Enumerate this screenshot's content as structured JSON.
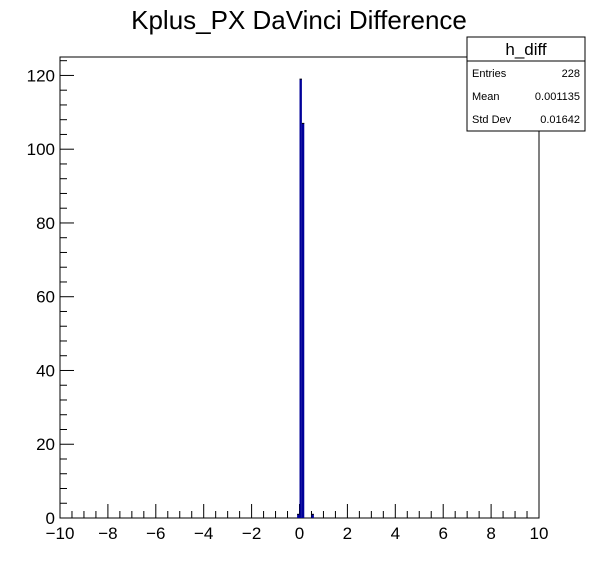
{
  "chart_data": {
    "type": "bar",
    "title": "Kplus_PX DaVinci Difference",
    "xlabel": "",
    "ylabel": "",
    "xlim": [
      -10,
      10
    ],
    "ylim": [
      0,
      125
    ],
    "x_tick_labels": [
      "−10",
      "−8",
      "−6",
      "−4",
      "−2",
      "0",
      "2",
      "4",
      "6",
      "8",
      "10"
    ],
    "x_tick_values": [
      -10,
      -8,
      -6,
      -4,
      -2,
      0,
      2,
      4,
      6,
      8,
      10
    ],
    "y_tick_labels": [
      "0",
      "20",
      "40",
      "60",
      "80",
      "100",
      "120"
    ],
    "y_tick_values": [
      0,
      20,
      40,
      60,
      80,
      100,
      120
    ],
    "bins": {
      "count": 200,
      "low": -10,
      "high": 10
    },
    "series": [
      {
        "x": [
          -0.1,
          0.0,
          0.1,
          0.5
        ],
        "values": [
          1,
          119,
          107,
          1
        ]
      }
    ],
    "bar_color": "#000099",
    "grid": false,
    "stats_box": {
      "title": "h_diff",
      "placement": "top-right",
      "rows": [
        {
          "label": "Entries",
          "value": "228"
        },
        {
          "label": "Mean",
          "value": "0.001135"
        },
        {
          "label": "Std Dev",
          "value": "0.01642"
        }
      ]
    }
  }
}
